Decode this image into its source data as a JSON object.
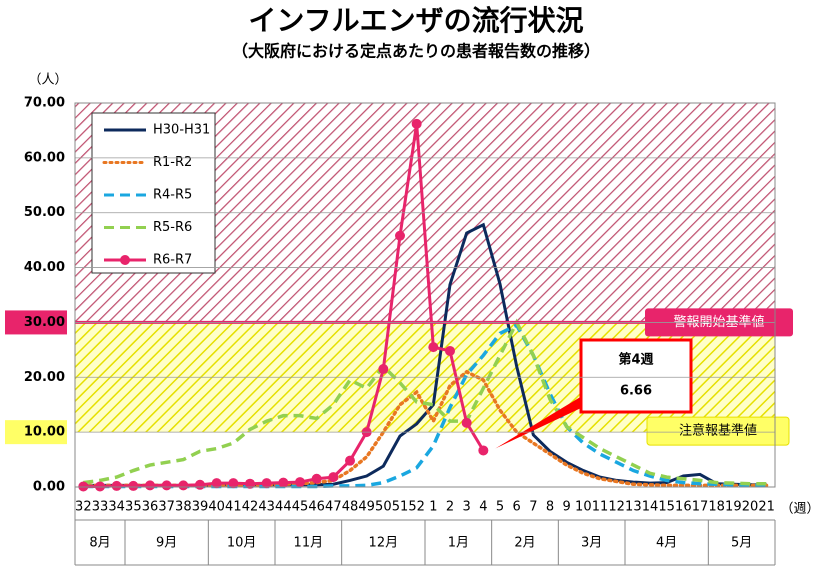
{
  "chart_data": {
    "type": "line",
    "title": "インフルエンザの流行状況",
    "subtitle": "（大阪府における定点あたりの患者報告数の推移）",
    "y_unit": "（人）",
    "x_unit": "（週）",
    "categories": [
      "32",
      "33",
      "34",
      "35",
      "36",
      "37",
      "38",
      "39",
      "40",
      "41",
      "42",
      "43",
      "44",
      "45",
      "46",
      "47",
      "48",
      "49",
      "50",
      "51",
      "52",
      "1",
      "2",
      "3",
      "4",
      "5",
      "6",
      "7",
      "8",
      "9",
      "10",
      "11",
      "12",
      "13",
      "14",
      "15",
      "16",
      "17",
      "18",
      "19",
      "20",
      "21"
    ],
    "months": [
      {
        "label": "8月",
        "span": 3
      },
      {
        "label": "9月",
        "span": 5
      },
      {
        "label": "10月",
        "span": 4
      },
      {
        "label": "11月",
        "span": 4
      },
      {
        "label": "12月",
        "span": 5
      },
      {
        "label": "1月",
        "span": 4
      },
      {
        "label": "2月",
        "span": 4
      },
      {
        "label": "3月",
        "span": 4
      },
      {
        "label": "4月",
        "span": 5
      },
      {
        "label": "5月",
        "span": 4
      }
    ],
    "ylim": [
      0,
      70
    ],
    "yticks": [
      {
        "value": 0,
        "label": "0.00"
      },
      {
        "value": 10,
        "label": "10.00"
      },
      {
        "value": 20,
        "label": "20.00"
      },
      {
        "value": 30,
        "label": "30.00"
      },
      {
        "value": 40,
        "label": "40.00"
      },
      {
        "value": 50,
        "label": "50.00"
      },
      {
        "value": 60,
        "label": "60.00"
      },
      {
        "value": 70,
        "label": "70.00"
      }
    ],
    "grid": true,
    "legend": "upper left",
    "thresholds": [
      {
        "label": "警報開始基準値",
        "value": 30,
        "color": "#e8246b",
        "band_color": "#c0506f"
      },
      {
        "label": "注意報基準値",
        "value": 10,
        "color": "#f5e600",
        "band_color": "#e6e000"
      }
    ],
    "callout": {
      "title": "第4週",
      "value": 6.66,
      "color": "#ff0000"
    },
    "series": [
      {
        "name": "H30-H31",
        "color": "#0d2a5c",
        "style": "solid",
        "values": [
          0.3,
          0.3,
          0.3,
          0.3,
          0.3,
          0.3,
          0.3,
          0.3,
          0.4,
          0.4,
          0.4,
          0.4,
          0.4,
          0.4,
          0.4,
          0.5,
          1.2,
          2,
          3.8,
          9.3,
          11.5,
          15,
          36.9,
          46.3,
          47.8,
          37,
          22,
          9.5,
          6.5,
          4.5,
          3,
          1.8,
          1.2,
          0.9,
          0.7,
          0.8,
          2,
          2.3,
          0.6,
          0.5,
          0.4,
          0.4
        ]
      },
      {
        "name": "R1-R2",
        "color": "#e87722",
        "style": "dotted",
        "values": [
          0.3,
          0.3,
          0.3,
          0.3,
          0.3,
          0.3,
          0.3,
          0.3,
          0.3,
          0.3,
          0.3,
          0.4,
          0.5,
          0.6,
          0.8,
          1.2,
          3,
          5.5,
          10,
          15,
          17.3,
          12,
          18.5,
          21,
          19.5,
          14,
          10,
          8,
          6,
          4,
          2.5,
          1.5,
          1,
          0.5,
          0.4,
          0.3,
          0.3,
          0.3,
          0.3,
          0.3,
          0.3,
          0.3
        ]
      },
      {
        "name": "R4-R5",
        "color": "#1aa7e0",
        "style": "dashed",
        "values": [
          0.1,
          0.1,
          0.1,
          0.1,
          0.1,
          0.1,
          0.1,
          0.1,
          0.1,
          0.1,
          0.1,
          0.1,
          0.1,
          0.1,
          0.1,
          0.2,
          0.2,
          0.3,
          0.8,
          2,
          3.5,
          7.5,
          14.5,
          20.5,
          24,
          28,
          29.5,
          24,
          17,
          11,
          8,
          6,
          4.5,
          3,
          2,
          1.2,
          0.8,
          0.6,
          0.5,
          0.4,
          0.3,
          0.3
        ]
      },
      {
        "name": "R5-R6",
        "color": "#92d050",
        "style": "dashed",
        "values": [
          0.8,
          1.2,
          1.8,
          3,
          4,
          4.5,
          5,
          6.5,
          7,
          8,
          10.5,
          12,
          13,
          13,
          12.5,
          15,
          19.5,
          18,
          22,
          19,
          15.5,
          15,
          12,
          12,
          18,
          24,
          30,
          24,
          16,
          11,
          9,
          7,
          5.5,
          4,
          2.5,
          1.8,
          1.5,
          1.2,
          0.8,
          0.7,
          0.6,
          0.6
        ]
      },
      {
        "name": "R6-R7",
        "color": "#e8246b",
        "style": "solid",
        "marker": "circle",
        "values": [
          0.1,
          0.1,
          0.2,
          0.2,
          0.3,
          0.3,
          0.3,
          0.4,
          0.7,
          0.7,
          0.6,
          0.7,
          0.8,
          0.9,
          1.5,
          1.8,
          4.8,
          10,
          21.5,
          45.8,
          66.2,
          25.5,
          24.8,
          11.7,
          6.66,
          null,
          null,
          null,
          null,
          null,
          null,
          null,
          null,
          null,
          null,
          null,
          null,
          null,
          null,
          null,
          null,
          null
        ]
      }
    ]
  }
}
